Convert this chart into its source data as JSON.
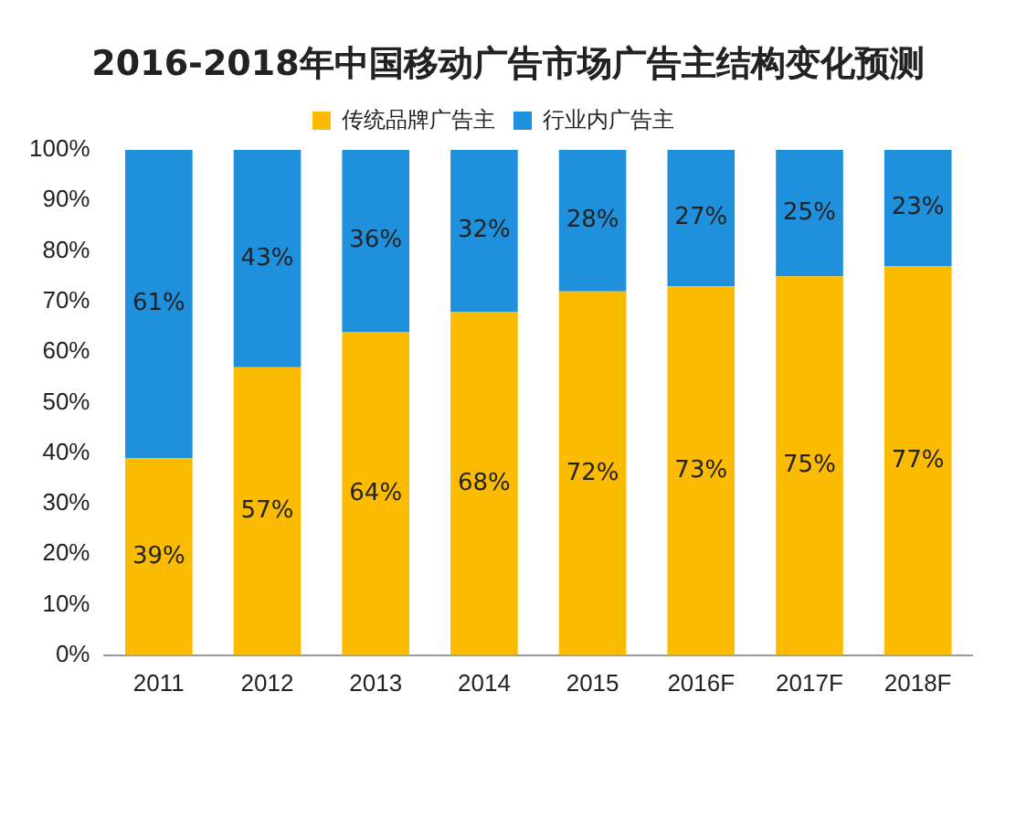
{
  "chart_data": {
    "type": "bar",
    "title": "2016-2018年中国移动广告市场广告主结构变化预测",
    "categories": [
      "2011",
      "2012",
      "2013",
      "2014",
      "2015",
      "2016F",
      "2017F",
      "2018F"
    ],
    "stacked": true,
    "series": [
      {
        "name": "传统品牌广告主",
        "color": "#fbbb00",
        "values": [
          39,
          57,
          64,
          68,
          72,
          73,
          75,
          77
        ],
        "value_labels": [
          "39%",
          "57%",
          "64%",
          "68%",
          "72%",
          "73%",
          "75%",
          "77%"
        ]
      },
      {
        "name": "行业内广告主",
        "color": "#1e90dc",
        "values": [
          61,
          43,
          36,
          32,
          28,
          27,
          25,
          23
        ],
        "value_labels": [
          "61%",
          "43%",
          "36%",
          "32%",
          "28%",
          "27%",
          "25%",
          "23%"
        ]
      }
    ],
    "ylim": [
      0,
      100
    ],
    "yticks": [
      {
        "value": 0,
        "label": "0%"
      },
      {
        "value": 10,
        "label": "10%"
      },
      {
        "value": 20,
        "label": "20%"
      },
      {
        "value": 30,
        "label": "30%"
      },
      {
        "value": 40,
        "label": "40%"
      },
      {
        "value": 50,
        "label": "50%"
      },
      {
        "value": 60,
        "label": "60%"
      },
      {
        "value": 70,
        "label": "70%"
      },
      {
        "value": 80,
        "label": "80%"
      },
      {
        "value": 90,
        "label": "90%"
      },
      {
        "value": 100,
        "label": "100%"
      }
    ],
    "grid": false,
    "legend": "top"
  }
}
